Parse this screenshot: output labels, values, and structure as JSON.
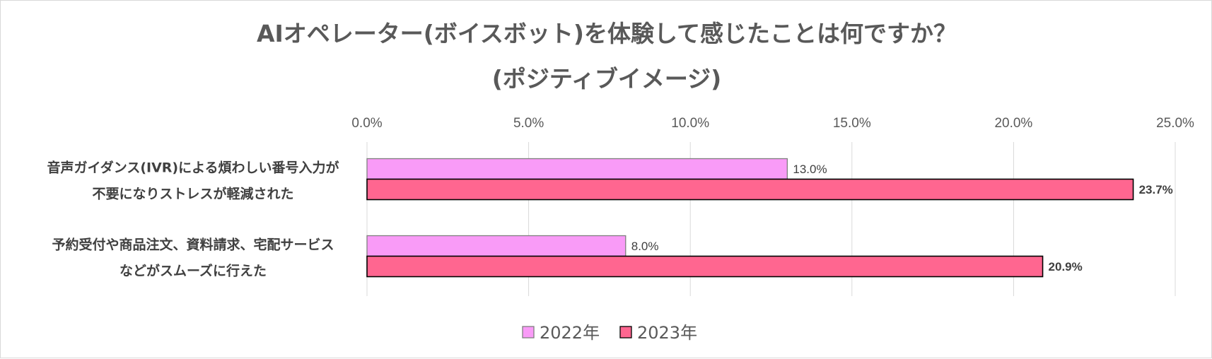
{
  "chart_data": {
    "type": "bar",
    "orientation": "horizontal",
    "title": "AIオペレーター(ボイスボット)を体験して感じたことは何ですか？",
    "subtitle": "(ポジティブイメージ)",
    "categories": [
      [
        "音声ガイダンス(IVR)による煩わしい番号入力が",
        "不要になりストレスが軽減された"
      ],
      [
        "予約受付や商品注文、資料請求、宅配サービス",
        "などがスムーズに行えた"
      ]
    ],
    "series": [
      {
        "name": "2022年",
        "values": [
          13.0,
          8.0
        ],
        "labels": [
          "13.0%",
          "8.0%"
        ],
        "color": "#f99bf7",
        "label_bold": false
      },
      {
        "name": "2023年",
        "values": [
          23.7,
          20.9
        ],
        "labels": [
          "23.7%",
          "20.9%"
        ],
        "color": "#ff6690",
        "label_bold": true
      }
    ],
    "xlim": [
      0,
      25
    ],
    "xticks": [
      "0.0%",
      "5.0%",
      "10.0%",
      "15.0%",
      "20.0%",
      "25.0%"
    ],
    "axis_position": "top",
    "grid": true,
    "legend_position": "bottom"
  }
}
